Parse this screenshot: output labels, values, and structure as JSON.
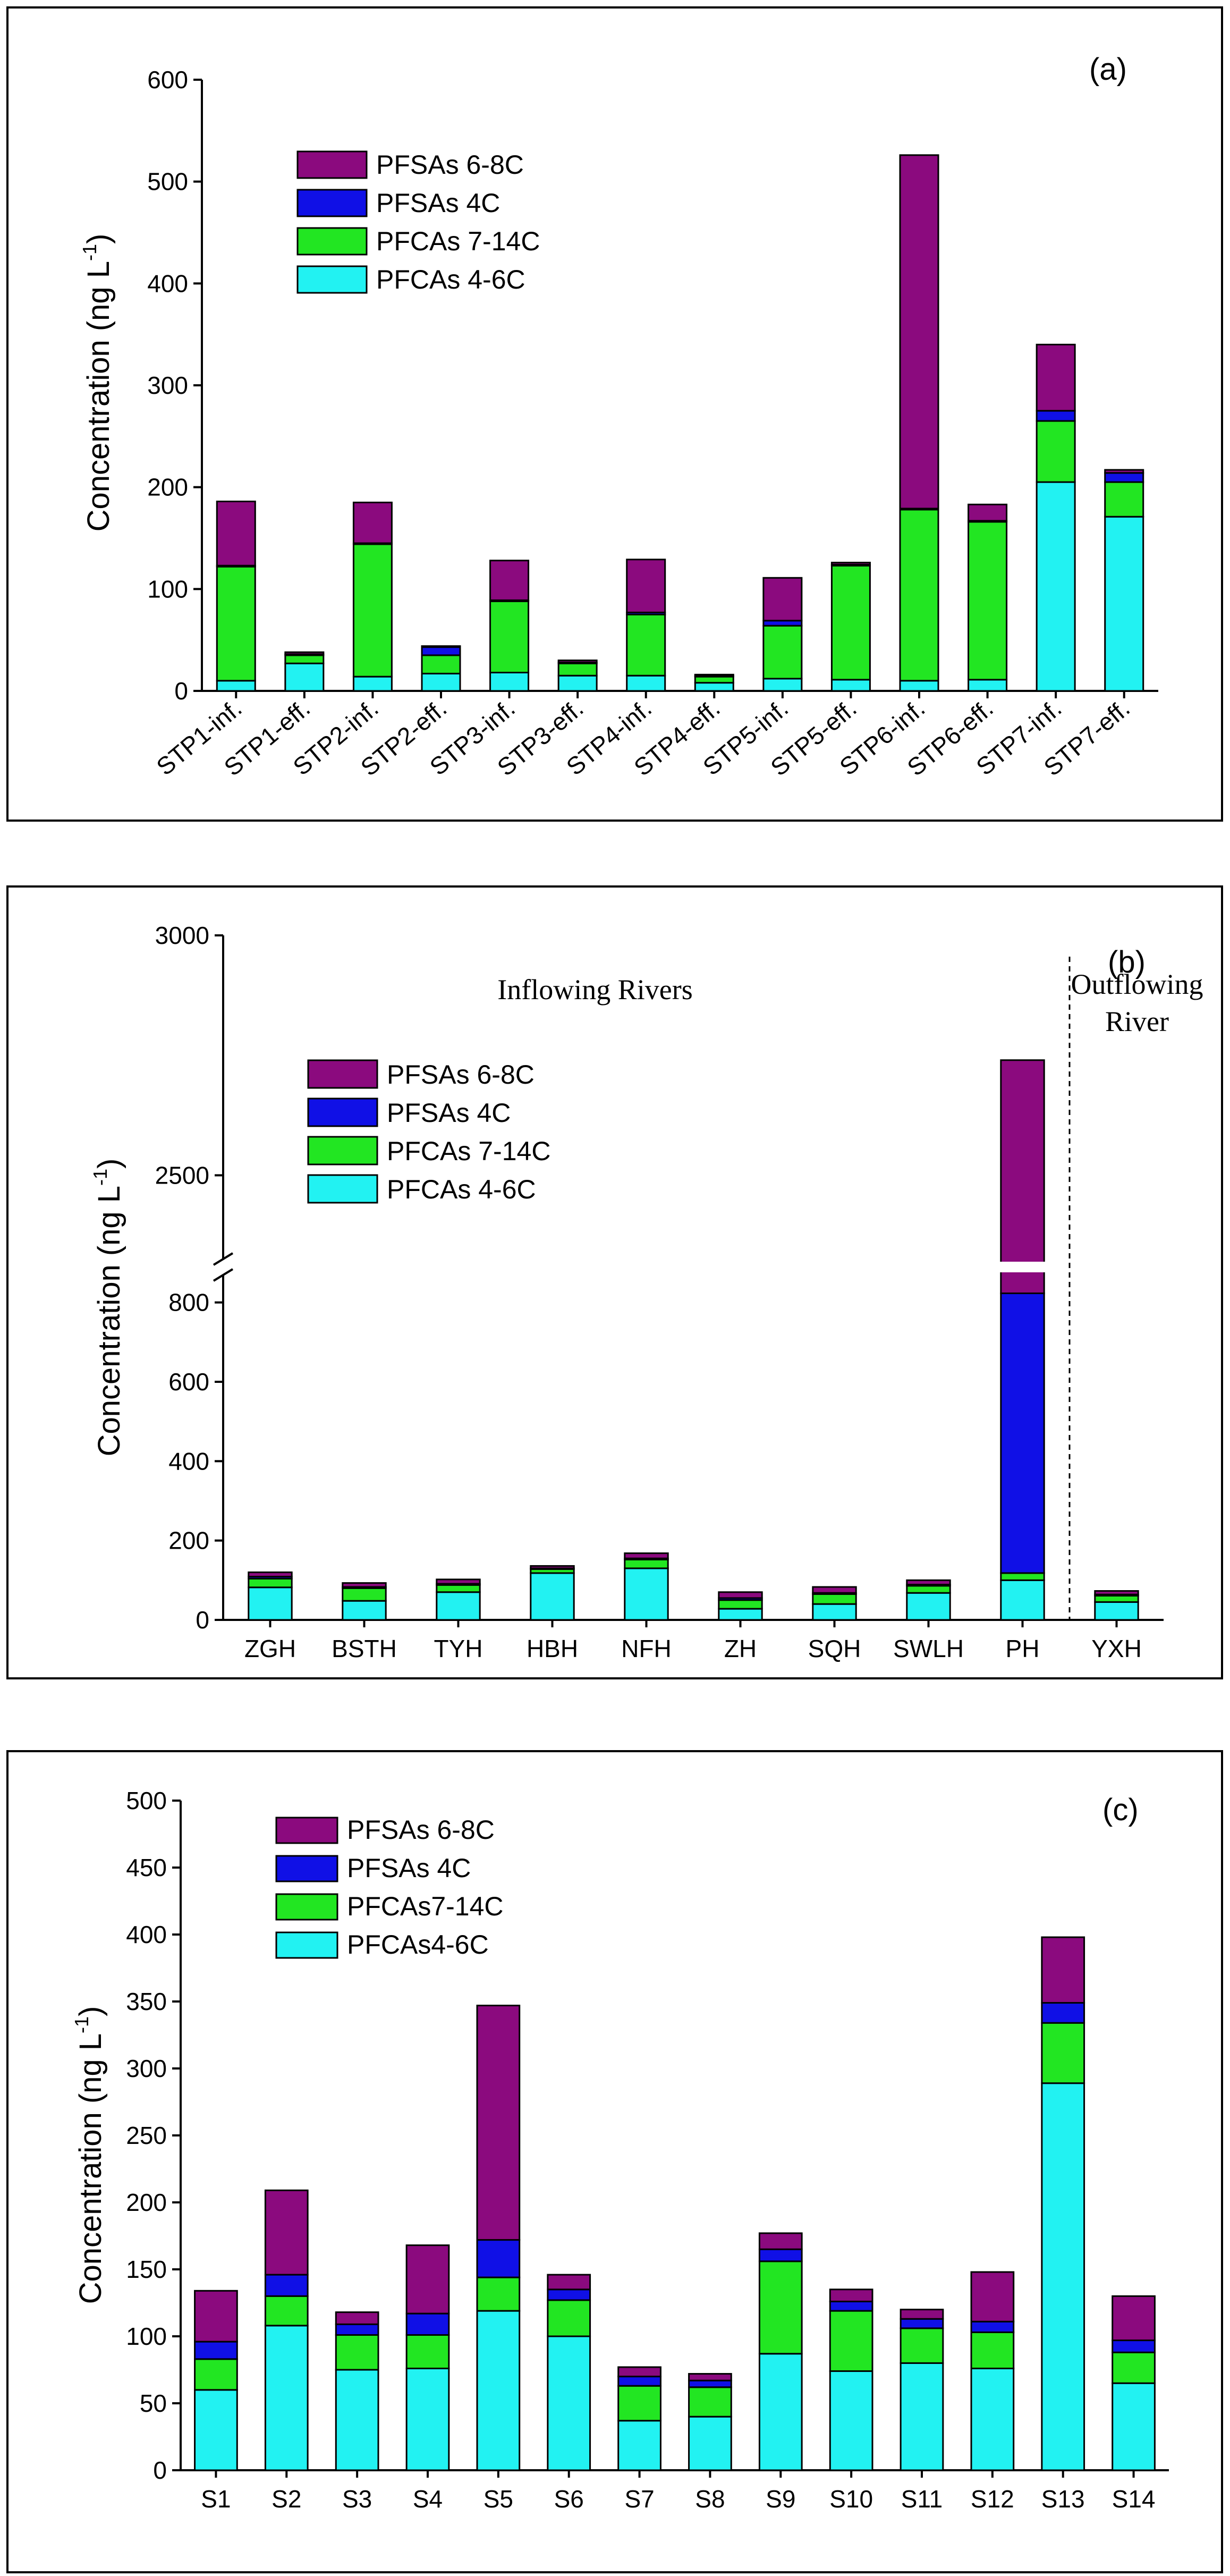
{
  "colors": {
    "PFSAs 6-8C": "#8B0A7E",
    "PFSAs 4C": "#1010E6",
    "PFCAs 7-14C": "#22E622",
    "PFCAs 4-6C": "#22F2F2"
  },
  "chart_data": [
    {
      "type": "bar",
      "stacked": true,
      "panel_label": "(a)",
      "ylabel_main": "Concentration (ng L",
      "ylabel_sup": "-1",
      "ylabel_end": ")",
      "ylim": [
        0,
        600
      ],
      "yticks": [
        0,
        100,
        200,
        300,
        400,
        500,
        600
      ],
      "categories": [
        "STP1-inf.",
        "STP1-eff.",
        "STP2-inf.",
        "STP2-eff.",
        "STP3-inf.",
        "STP3-eff.",
        "STP4-inf.",
        "STP4-eff.",
        "STP5-inf.",
        "STP5-eff.",
        "STP6-inf.",
        "STP6-eff.",
        "STP7-inf.",
        "STP7-eff."
      ],
      "legend_labels": [
        "PFSAs 6-8C",
        "PFSAs 4C",
        "PFCAs 7-14C",
        "PFCAs 4-6C"
      ],
      "series": [
        {
          "name": "PFCAs 4-6C",
          "values": [
            10,
            27,
            14,
            17,
            18,
            15,
            15,
            8,
            12,
            11,
            10,
            11,
            205,
            171
          ]
        },
        {
          "name": "PFCAs 7-14C",
          "values": [
            112,
            8,
            130,
            18,
            70,
            12,
            60,
            6,
            52,
            112,
            168,
            155,
            60,
            34
          ]
        },
        {
          "name": "PFSAs 4C",
          "values": [
            1,
            1,
            1,
            8,
            1,
            1,
            2,
            1,
            5,
            1,
            1,
            1,
            10,
            9
          ]
        },
        {
          "name": "PFSAs 6-8C",
          "values": [
            63,
            2,
            40,
            1,
            39,
            2,
            52,
            1,
            42,
            2,
            347,
            16,
            65,
            3
          ]
        }
      ]
    },
    {
      "type": "bar",
      "stacked": true,
      "panel_label": "(b)",
      "ylabel_main": "Concentration (ng L",
      "ylabel_sup": "-1",
      "ylabel_end": ")",
      "axis_break": {
        "lower": [
          0,
          900
        ],
        "upper": [
          2300,
          3000
        ]
      },
      "yticks_lower": [
        0,
        200,
        400,
        600,
        800
      ],
      "yticks_upper": [
        2500,
        3000
      ],
      "categories": [
        "ZGH",
        "BSTH",
        "TYH",
        "HBH",
        "NFH",
        "ZH",
        "SQH",
        "SWLH",
        "PH",
        "YXH"
      ],
      "annotations": {
        "inflowing": "Inflowing Rivers",
        "outflowing_1": "Outflowing",
        "outflowing_2": "River"
      },
      "legend_labels": [
        "PFSAs 6-8C",
        "PFSAs 4C",
        "PFCAs 7-14C",
        "PFCAs 4-6C"
      ],
      "series": [
        {
          "name": "PFCAs 4-6C",
          "values": [
            82,
            48,
            70,
            118,
            130,
            28,
            40,
            68,
            100,
            45
          ]
        },
        {
          "name": "PFCAs 7-14C",
          "values": [
            22,
            32,
            18,
            10,
            22,
            22,
            25,
            18,
            18,
            16
          ]
        },
        {
          "name": "PFSAs 4C",
          "values": [
            5,
            3,
            3,
            2,
            3,
            5,
            3,
            3,
            705,
            3
          ]
        },
        {
          "name": "PFSAs 6-8C",
          "values": [
            11,
            10,
            11,
            6,
            13,
            15,
            15,
            11,
            1917,
            9
          ]
        }
      ]
    },
    {
      "type": "bar",
      "stacked": true,
      "panel_label": "(c)",
      "ylabel_main": "Concentration (ng L",
      "ylabel_sup": "-1",
      "ylabel_end": ")",
      "ylim": [
        0,
        500
      ],
      "yticks": [
        0,
        50,
        100,
        150,
        200,
        250,
        300,
        350,
        400,
        450,
        500
      ],
      "categories": [
        "S1",
        "S2",
        "S3",
        "S4",
        "S5",
        "S6",
        "S7",
        "S8",
        "S9",
        "S10",
        "S11",
        "S12",
        "S13",
        "S14"
      ],
      "legend_labels": [
        "PFSAs 6-8C",
        "PFSAs 4C",
        "PFCAs7-14C",
        "PFCAs4-6C"
      ],
      "series": [
        {
          "name": "PFCAs 4-6C",
          "values": [
            60,
            108,
            75,
            76,
            119,
            100,
            37,
            40,
            87,
            74,
            80,
            76,
            289,
            65
          ]
        },
        {
          "name": "PFCAs 7-14C",
          "values": [
            23,
            22,
            26,
            25,
            25,
            27,
            26,
            22,
            69,
            45,
            26,
            27,
            45,
            23
          ]
        },
        {
          "name": "PFSAs 4C",
          "values": [
            13,
            16,
            8,
            16,
            28,
            8,
            7,
            5,
            9,
            7,
            7,
            8,
            15,
            9
          ]
        },
        {
          "name": "PFSAs 6-8C",
          "values": [
            38,
            63,
            9,
            51,
            175,
            11,
            7,
            5,
            12,
            9,
            7,
            37,
            49,
            33
          ]
        }
      ]
    }
  ]
}
